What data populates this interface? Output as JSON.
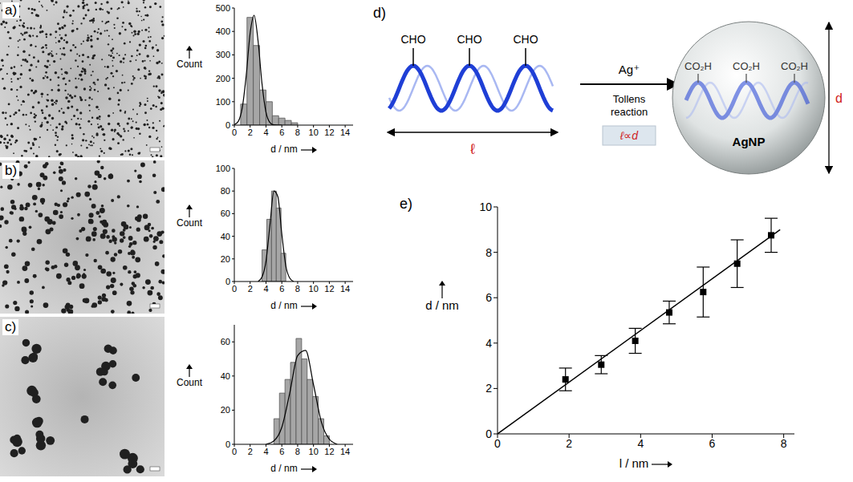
{
  "chart_data": [
    {
      "panel": "a)",
      "type": "histogram",
      "bins": [
        0.8,
        1.6,
        2.4,
        3.2,
        4.0,
        4.8,
        5.6,
        6.4,
        7.2,
        8.0
      ],
      "counts": [
        90,
        460,
        340,
        150,
        100,
        40,
        30,
        20,
        10
      ],
      "color": "#a6a6a6",
      "fit": {
        "x": [
          0,
          0.5,
          1,
          1.5,
          2,
          2.5,
          3,
          3.5,
          4,
          4.5,
          5,
          5.5,
          6
        ],
        "y": [
          2,
          16,
          73,
          211,
          393,
          469,
          359,
          176,
          55,
          11,
          1,
          0,
          0
        ],
        "color": "#000000"
      },
      "xlabel": "d / nm",
      "ylabel": "Count",
      "xlim": [
        0,
        15
      ],
      "xticks": [
        0,
        2,
        4,
        6,
        8,
        10,
        12,
        14
      ],
      "ylim": [
        0,
        500
      ],
      "yticks": [
        0,
        100,
        200,
        300,
        400,
        500
      ]
    },
    {
      "panel": "b)",
      "type": "histogram",
      "bins": [
        3.5,
        4.1,
        4.7,
        5.3,
        5.9,
        6.5
      ],
      "counts": [
        28,
        55,
        80,
        65,
        25
      ],
      "color": "#a6a6a6",
      "fit": {
        "x": [
          3,
          3.5,
          4,
          4.5,
          5,
          5.5,
          6,
          6.5,
          7,
          7.5
        ],
        "y": [
          0,
          4,
          18,
          50,
          80,
          75,
          42,
          14,
          3,
          0
        ],
        "color": "#000000"
      },
      "xlabel": "d / nm",
      "ylabel": "Count",
      "xlim": [
        0,
        15
      ],
      "xticks": [
        0,
        2,
        4,
        6,
        8,
        10,
        12,
        14
      ],
      "ylim": [
        0,
        100
      ],
      "yticks": [
        0,
        20,
        40,
        60,
        80,
        100
      ]
    },
    {
      "panel": "c)",
      "type": "histogram",
      "bins": [
        5,
        5.7,
        6.4,
        7.1,
        7.8,
        8.5,
        9.2,
        9.9,
        10.6,
        11.3,
        12
      ],
      "counts": [
        15,
        30,
        38,
        48,
        62,
        50,
        38,
        28,
        15,
        5
      ],
      "color": "#a6a6a6",
      "fit": {
        "x": [
          4,
          5,
          6,
          7,
          8,
          9,
          10,
          11,
          12,
          13
        ],
        "y": [
          0,
          2,
          10,
          30,
          52,
          55,
          35,
          13,
          3,
          0
        ],
        "color": "#000000"
      },
      "xlabel": "d / nm",
      "ylabel": "Count",
      "xlim": [
        0,
        15
      ],
      "xticks": [
        0,
        2,
        4,
        6,
        8,
        10,
        12,
        14
      ],
      "ylim": [
        0,
        70
      ],
      "yticks": [
        0,
        20,
        40,
        60
      ]
    },
    {
      "panel": "e)",
      "type": "scatter",
      "x": [
        1.9,
        2.9,
        3.85,
        4.8,
        5.75,
        6.7,
        7.65
      ],
      "values": [
        2.4,
        3.05,
        4.1,
        5.35,
        6.25,
        7.5,
        8.75
      ],
      "errors": [
        0.5,
        0.4,
        0.55,
        0.5,
        1.1,
        1.05,
        0.75
      ],
      "color": "#000000",
      "marker": "square",
      "fit": {
        "x": [
          0,
          7.9
        ],
        "y": [
          0,
          9.0
        ],
        "color": "#000000"
      },
      "xlabel": "l / nm",
      "ylabel": "d / nm",
      "xlim": [
        0,
        8.3
      ],
      "xticks": [
        0,
        2,
        4,
        6,
        8
      ],
      "ylim": [
        0,
        10
      ],
      "yticks": [
        0,
        2,
        4,
        6,
        8,
        10
      ]
    }
  ],
  "diagram": {
    "panel": "d)",
    "aldehyde_groups": [
      "CHO",
      "CHO",
      "CHO"
    ],
    "length_label": "ℓ",
    "reagent": "Ag⁺",
    "reaction": "Tollens reaction",
    "relation": "ℓ∝d",
    "acid_groups": [
      "CO₂H",
      "CO₂H",
      "CO₂H"
    ],
    "particle": "AgNP",
    "diameter_label": "d"
  }
}
